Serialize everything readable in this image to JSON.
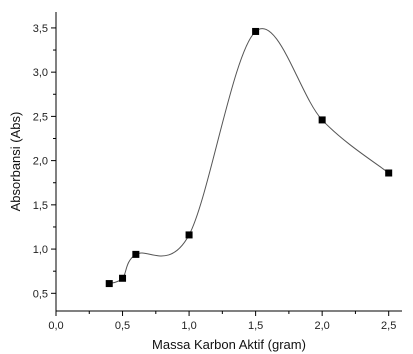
{
  "chart_data": {
    "type": "scatter",
    "title": "",
    "xlabel": "Massa Karbon Aktif (gram)",
    "ylabel": "Absorbansi (Abs)",
    "xlim": [
      0.0,
      2.6
    ],
    "ylim": [
      0.3,
      3.68
    ],
    "x_ticks": [
      0.0,
      0.5,
      1.0,
      1.5,
      2.0,
      2.5
    ],
    "x_tick_labels": [
      "0,0",
      "0,5",
      "1,0",
      "1,5",
      "2,0",
      "2,5"
    ],
    "y_ticks": [
      0.5,
      1.0,
      1.5,
      2.0,
      2.5,
      3.0,
      3.5
    ],
    "y_tick_labels": [
      "0,5",
      "1,0",
      "1,5",
      "2,0",
      "2,5",
      "3,0",
      "3,5"
    ],
    "series": [
      {
        "x": [
          0.4,
          0.5,
          0.6,
          1.0,
          1.5,
          2.0,
          2.5
        ],
        "y": [
          0.61,
          0.67,
          0.94,
          1.16,
          3.46,
          2.46,
          1.86
        ],
        "marker": "square",
        "line": "smooth",
        "marker_color": "#000000",
        "line_color": "#555555"
      }
    ],
    "grid": false,
    "legend": "none"
  }
}
